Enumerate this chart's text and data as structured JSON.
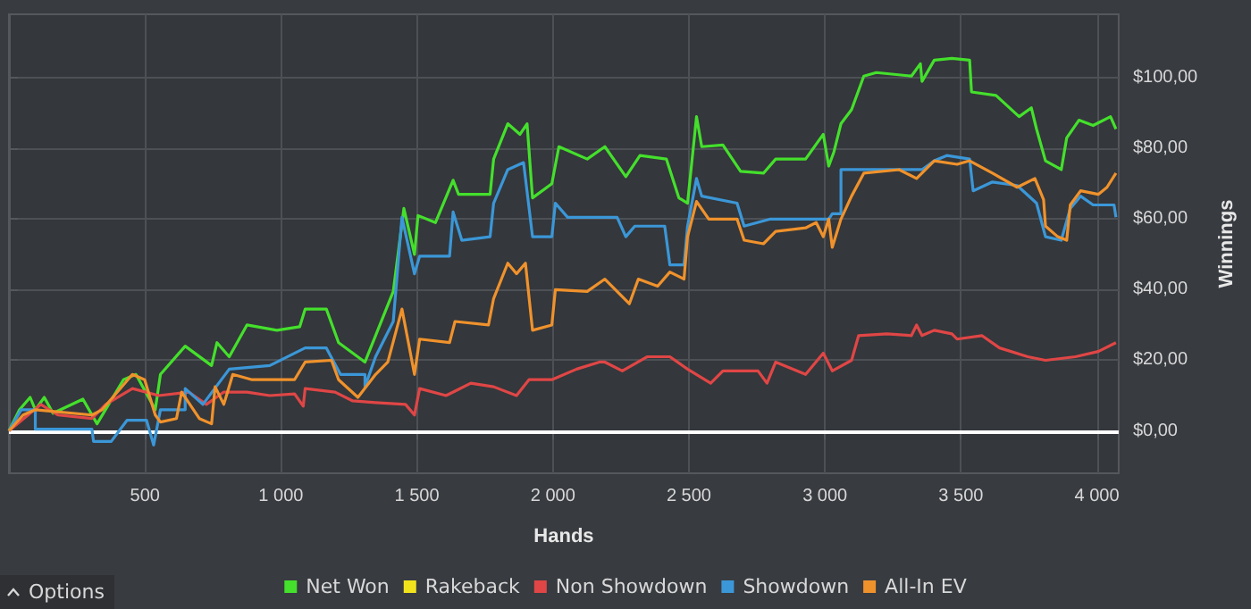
{
  "chart_data": {
    "type": "line",
    "xlabel": "Hands",
    "ylabel": "Winnings",
    "annotations": [
      "Options"
    ],
    "xlim": [
      0,
      4080
    ],
    "ylim": [
      -12,
      118
    ],
    "xticks": [
      {
        "value": 500,
        "label": "500"
      },
      {
        "value": 1000,
        "label": "1 000"
      },
      {
        "value": 1500,
        "label": "1 500"
      },
      {
        "value": 2000,
        "label": "2 000"
      },
      {
        "value": 2500,
        "label": "2 500"
      },
      {
        "value": 3000,
        "label": "3 000"
      },
      {
        "value": 3500,
        "label": "3 500"
      },
      {
        "value": 4000,
        "label": "4 000"
      }
    ],
    "yticks": [
      {
        "value": 0,
        "label": "$0,00"
      },
      {
        "value": 20,
        "label": "$20,00"
      },
      {
        "value": 40,
        "label": "$40,00"
      },
      {
        "value": 60,
        "label": "$60,00"
      },
      {
        "value": 80,
        "label": "$80,00"
      },
      {
        "value": 100,
        "label": "$100,00"
      }
    ],
    "grid": true,
    "legend": "bottom",
    "marker": "none",
    "line_style": "solid",
    "ref_lines": [
      {
        "axis": "y",
        "value": 0,
        "color": "#ffffff"
      }
    ],
    "series": [
      {
        "name": "Net Won",
        "color": "#44e02c",
        "x": [
          0,
          39,
          78,
          97,
          130,
          162,
          272,
          324,
          421,
          467,
          538,
          557,
          648,
          745,
          765,
          810,
          875,
          985,
          1069,
          1089,
          1167,
          1212,
          1309,
          1348,
          1413,
          1452,
          1491,
          1504,
          1568,
          1633,
          1653,
          1769,
          1782,
          1834,
          1879,
          1905,
          1925,
          1996,
          2022,
          2126,
          2191,
          2268,
          2320,
          2417,
          2463,
          2495,
          2528,
          2547,
          2625,
          2690,
          2774,
          2819,
          2929,
          2994,
          3014,
          3033,
          3059,
          3098,
          3143,
          3189,
          3318,
          3351,
          3357,
          3402,
          3467,
          3532,
          3539,
          3629,
          3714,
          3759,
          3778,
          3811,
          3869,
          3889,
          3934,
          3986,
          4050,
          4070
        ],
        "values": [
          0,
          6,
          9.5,
          6,
          9.5,
          5,
          9,
          2,
          14.5,
          16,
          6,
          16,
          24,
          18.5,
          25,
          21,
          30,
          28.5,
          29.5,
          34.5,
          34.5,
          25,
          19.5,
          27,
          39.5,
          63,
          50,
          61,
          59,
          71,
          67,
          67,
          77,
          87,
          84,
          87,
          66,
          70,
          80.5,
          77,
          80.5,
          72,
          78,
          77,
          66,
          64.5,
          89,
          80.5,
          81,
          73.5,
          73,
          77,
          77,
          84,
          75,
          79,
          87,
          91,
          100.5,
          101.5,
          100.5,
          104,
          99,
          105,
          105.5,
          105,
          96,
          95,
          89,
          91.5,
          85.5,
          76.5,
          74,
          83,
          88,
          86.5,
          89,
          85.5
        ]
      },
      {
        "name": "Rakeback",
        "color": "#f2e41c"
      },
      {
        "name": "Non Showdown",
        "color": "#e04646",
        "x": [
          0,
          78,
          117,
          181,
          305,
          356,
          454,
          551,
          661,
          726,
          790,
          875,
          959,
          1050,
          1082,
          1089,
          1199,
          1264,
          1348,
          1458,
          1491,
          1510,
          1607,
          1698,
          1782,
          1866,
          1912,
          1996,
          2087,
          2171,
          2191,
          2255,
          2346,
          2430,
          2495,
          2580,
          2625,
          2754,
          2787,
          2819,
          2929,
          2994,
          3027,
          3098,
          3124,
          3228,
          3318,
          3337,
          3357,
          3402,
          3467,
          3486,
          3577,
          3642,
          3746,
          3811,
          3921,
          4005,
          4070
        ],
        "values": [
          0,
          5,
          7.5,
          4.5,
          3.5,
          7.5,
          12,
          10,
          11,
          7.5,
          11,
          11,
          10,
          10.5,
          7,
          12,
          11,
          8.5,
          8,
          7.5,
          4.5,
          12,
          10,
          13.5,
          12.5,
          10,
          14.5,
          14.5,
          17.5,
          19.5,
          19.5,
          17,
          21,
          21,
          17.5,
          13.5,
          17,
          17,
          13.5,
          19.5,
          16,
          22,
          17,
          20,
          27,
          27.5,
          27,
          30,
          27,
          28.5,
          27.5,
          26,
          27,
          23.5,
          21,
          20,
          21,
          22.5,
          25
        ]
      },
      {
        "name": "Showdown",
        "color": "#3b97d8",
        "x": [
          0,
          45,
          97,
          97,
          305,
          311,
          376,
          434,
          506,
          532,
          557,
          648,
          648,
          713,
          810,
          959,
          1089,
          1167,
          1219,
          1309,
          1309,
          1348,
          1413,
          1445,
          1491,
          1510,
          1620,
          1633,
          1665,
          1769,
          1782,
          1834,
          1892,
          1925,
          1996,
          2009,
          2054,
          2236,
          2268,
          2301,
          2411,
          2430,
          2482,
          2495,
          2528,
          2547,
          2677,
          2703,
          2800,
          3014,
          3027,
          3059,
          3059,
          3357,
          3402,
          3448,
          3532,
          3545,
          3616,
          3707,
          3778,
          3811,
          3869,
          3902,
          3940,
          3986,
          4063,
          4070
        ],
        "values": [
          0,
          6,
          6,
          0.5,
          0.5,
          -3,
          -3,
          3,
          3,
          -4,
          6,
          6,
          12,
          7.5,
          17.5,
          18.5,
          23.5,
          23.5,
          16,
          16,
          12.5,
          21,
          31,
          60.5,
          44.5,
          49.5,
          49.5,
          62,
          54,
          55,
          64.5,
          74,
          76,
          55,
          55,
          64.5,
          60.5,
          60.5,
          55,
          58,
          58,
          47,
          47,
          58,
          71.5,
          66.5,
          64.5,
          58,
          60,
          60,
          61.5,
          61.5,
          74,
          74,
          76.5,
          78,
          77,
          68,
          70.5,
          69.5,
          64.5,
          55,
          54,
          63,
          66.5,
          64,
          64,
          60.5
        ]
      },
      {
        "name": "All-In EV",
        "color": "#f0922c",
        "x": [
          0,
          52,
          97,
          305,
          343,
          454,
          499,
          538,
          557,
          616,
          635,
          700,
          745,
          758,
          790,
          823,
          894,
          1050,
          1089,
          1186,
          1212,
          1283,
          1348,
          1393,
          1445,
          1491,
          1510,
          1620,
          1640,
          1763,
          1782,
          1834,
          1866,
          1899,
          1925,
          1996,
          2009,
          2126,
          2191,
          2281,
          2314,
          2385,
          2430,
          2482,
          2495,
          2528,
          2573,
          2677,
          2703,
          2774,
          2819,
          2929,
          2968,
          2994,
          3014,
          3027,
          3059,
          3098,
          3143,
          3273,
          3337,
          3402,
          3486,
          3532,
          3616,
          3707,
          3772,
          3804,
          3811,
          3856,
          3889,
          3902,
          3940,
          4005,
          4037,
          4070
        ],
        "values": [
          0,
          4.5,
          6,
          4.5,
          6,
          16,
          14.5,
          4.5,
          2.5,
          3.5,
          11,
          3.5,
          2,
          12.5,
          7.5,
          16,
          14.5,
          14.5,
          19.5,
          20,
          14.5,
          9.5,
          16,
          19.5,
          34.5,
          16,
          26,
          25,
          31,
          30,
          37.5,
          47.5,
          44.5,
          47.5,
          28.5,
          30,
          40,
          39.5,
          43,
          36,
          43,
          41,
          45,
          43,
          55,
          65,
          60,
          60,
          54,
          53,
          56.5,
          57.5,
          59,
          55,
          60,
          52,
          60,
          66.5,
          73,
          74,
          71.5,
          76.5,
          75.5,
          76.5,
          73,
          69,
          71.5,
          65.5,
          58,
          55,
          54,
          64,
          68,
          67,
          69,
          73
        ]
      }
    ]
  }
}
